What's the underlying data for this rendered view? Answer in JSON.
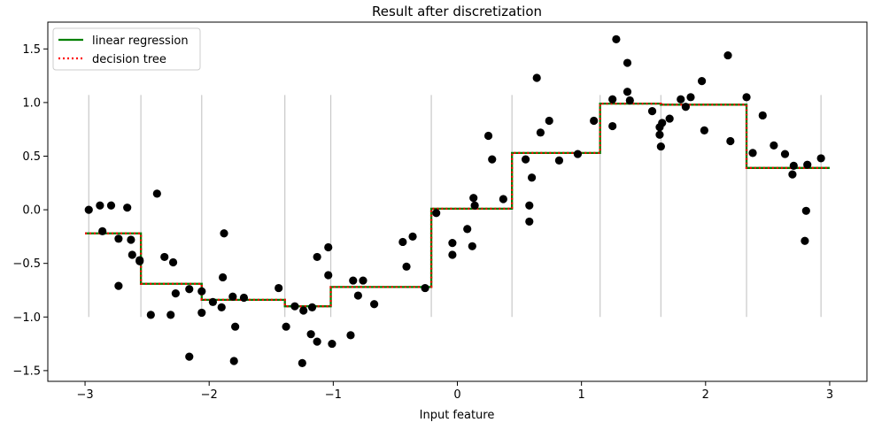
{
  "chart_data": {
    "type": "scatter",
    "title": "Result after discretization",
    "xlabel": "Input feature",
    "ylabel": "",
    "xlim": [
      -3.3,
      3.3
    ],
    "ylim": [
      -1.6,
      1.75
    ],
    "grid": false,
    "legend_position": "top-left",
    "x_ticks": [
      -3,
      -2,
      -1,
      0,
      1,
      2,
      3
    ],
    "x_tick_labels": [
      "−3",
      "−2",
      "−1",
      "0",
      "1",
      "2",
      "3"
    ],
    "y_ticks": [
      -1.5,
      -1.0,
      -0.5,
      0.0,
      0.5,
      1.0,
      1.5
    ],
    "y_tick_labels": [
      "−1.5",
      "−1.0",
      "−0.5",
      "0.0",
      "0.5",
      "1.0",
      "1.5"
    ],
    "bin_edges": [
      -2.97,
      -2.55,
      -2.06,
      -1.39,
      -1.02,
      -0.21,
      0.44,
      1.15,
      1.64,
      2.33,
      2.93
    ],
    "bin_line_range": [
      -1.0,
      1.07
    ],
    "series": [
      {
        "name": "linear regression",
        "kind": "step-line",
        "color": "#008000",
        "bins": [
          {
            "x0": -3.0,
            "x1": -2.55,
            "y": -0.22
          },
          {
            "x0": -2.55,
            "x1": -2.06,
            "y": -0.69
          },
          {
            "x0": -2.06,
            "x1": -1.39,
            "y": -0.84
          },
          {
            "x0": -1.39,
            "x1": -1.02,
            "y": -0.9
          },
          {
            "x0": -1.02,
            "x1": -0.21,
            "y": -0.72
          },
          {
            "x0": -0.21,
            "x1": 0.44,
            "y": 0.01
          },
          {
            "x0": 0.44,
            "x1": 1.15,
            "y": 0.53
          },
          {
            "x0": 1.15,
            "x1": 1.64,
            "y": 0.99
          },
          {
            "x0": 1.64,
            "x1": 2.33,
            "y": 0.98
          },
          {
            "x0": 2.33,
            "x1": 3.0,
            "y": 0.39
          }
        ]
      },
      {
        "name": "decision tree",
        "kind": "dotted-step-line",
        "color": "#ff0000",
        "same_as": "linear regression"
      },
      {
        "name": "",
        "kind": "points",
        "color": "#000000",
        "points": [
          [
            -2.97,
            0.0
          ],
          [
            -2.88,
            0.04
          ],
          [
            -2.86,
            -0.2
          ],
          [
            -2.79,
            0.04
          ],
          [
            -2.73,
            -0.27
          ],
          [
            -2.73,
            -0.71
          ],
          [
            -2.66,
            0.02
          ],
          [
            -2.63,
            -0.28
          ],
          [
            -2.62,
            -0.42
          ],
          [
            -2.56,
            -0.47
          ],
          [
            -2.56,
            -0.48
          ],
          [
            -2.47,
            -0.98
          ],
          [
            -2.42,
            0.15
          ],
          [
            -2.36,
            -0.44
          ],
          [
            -2.31,
            -0.98
          ],
          [
            -2.29,
            -0.49
          ],
          [
            -2.27,
            -0.78
          ],
          [
            -2.16,
            -1.37
          ],
          [
            -2.16,
            -0.74
          ],
          [
            -2.06,
            -0.76
          ],
          [
            -2.06,
            -0.96
          ],
          [
            -1.97,
            -0.86
          ],
          [
            -1.9,
            -0.91
          ],
          [
            -1.89,
            -0.63
          ],
          [
            -1.88,
            -0.22
          ],
          [
            -1.81,
            -0.81
          ],
          [
            -1.8,
            -1.41
          ],
          [
            -1.79,
            -1.09
          ],
          [
            -1.72,
            -0.82
          ],
          [
            -1.44,
            -0.73
          ],
          [
            -1.38,
            -1.09
          ],
          [
            -1.31,
            -0.9
          ],
          [
            -1.25,
            -1.43
          ],
          [
            -1.24,
            -0.94
          ],
          [
            -1.18,
            -1.16
          ],
          [
            -1.17,
            -0.91
          ],
          [
            -1.13,
            -0.44
          ],
          [
            -1.13,
            -1.23
          ],
          [
            -1.04,
            -0.61
          ],
          [
            -1.04,
            -0.35
          ],
          [
            -1.01,
            -1.25
          ],
          [
            -0.86,
            -1.17
          ],
          [
            -0.84,
            -0.66
          ],
          [
            -0.8,
            -0.8
          ],
          [
            -0.76,
            -0.66
          ],
          [
            -0.67,
            -0.88
          ],
          [
            -0.44,
            -0.3
          ],
          [
            -0.41,
            -0.53
          ],
          [
            -0.36,
            -0.25
          ],
          [
            -0.26,
            -0.73
          ],
          [
            -0.17,
            -0.03
          ],
          [
            -0.04,
            -0.31
          ],
          [
            -0.04,
            -0.42
          ],
          [
            0.08,
            -0.18
          ],
          [
            0.12,
            -0.34
          ],
          [
            0.13,
            0.11
          ],
          [
            0.14,
            0.04
          ],
          [
            0.25,
            0.69
          ],
          [
            0.28,
            0.47
          ],
          [
            0.37,
            0.1
          ],
          [
            0.55,
            0.47
          ],
          [
            0.58,
            0.04
          ],
          [
            0.58,
            -0.11
          ],
          [
            0.6,
            0.3
          ],
          [
            0.64,
            1.23
          ],
          [
            0.67,
            0.72
          ],
          [
            0.74,
            0.83
          ],
          [
            0.82,
            0.46
          ],
          [
            0.97,
            0.52
          ],
          [
            1.1,
            0.83
          ],
          [
            1.25,
            0.78
          ],
          [
            1.25,
            1.03
          ],
          [
            1.28,
            1.59
          ],
          [
            1.37,
            1.1
          ],
          [
            1.37,
            1.37
          ],
          [
            1.39,
            1.02
          ],
          [
            1.57,
            0.92
          ],
          [
            1.63,
            0.7
          ],
          [
            1.63,
            0.77
          ],
          [
            1.64,
            0.59
          ],
          [
            1.65,
            0.81
          ],
          [
            1.71,
            0.85
          ],
          [
            1.8,
            1.03
          ],
          [
            1.84,
            0.96
          ],
          [
            1.88,
            1.05
          ],
          [
            1.97,
            1.2
          ],
          [
            1.99,
            0.74
          ],
          [
            2.18,
            1.44
          ],
          [
            2.2,
            0.64
          ],
          [
            2.33,
            1.05
          ],
          [
            2.38,
            0.53
          ],
          [
            2.46,
            0.88
          ],
          [
            2.55,
            0.6
          ],
          [
            2.64,
            0.52
          ],
          [
            2.7,
            0.33
          ],
          [
            2.71,
            0.41
          ],
          [
            2.8,
            -0.29
          ],
          [
            2.81,
            -0.01
          ],
          [
            2.82,
            0.42
          ],
          [
            2.93,
            0.48
          ]
        ]
      }
    ]
  }
}
